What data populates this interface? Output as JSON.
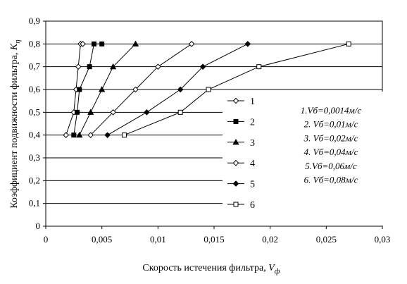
{
  "chart_data": {
    "type": "line",
    "xlabel": "Скорость истечения фильтра, ",
    "xlabel_symbol": "V",
    "xlabel_sub": "ф",
    "ylabel": "Коэффициент подвижности фильтра, ",
    "ylabel_symbol": "K",
    "ylabel_sub": "η",
    "xlim": [
      0,
      0.03
    ],
    "ylim": [
      0,
      0.9
    ],
    "xticks": [
      "0",
      "0,005",
      "0,01",
      "0,015",
      "0,02",
      "0,025",
      "0,03"
    ],
    "yticks": [
      "0",
      "0,1",
      "0,2",
      "0,3",
      "0,4",
      "0,5",
      "0,6",
      "0,7",
      "0,8",
      "0,9"
    ],
    "grid": "horizontal",
    "legend_position": "right",
    "series": [
      {
        "name": "1",
        "marker": "diamond-open",
        "x": [
          0.0018,
          0.0025,
          0.0027,
          0.0029,
          0.0031,
          0.0033
        ],
        "y": [
          0.4,
          0.5,
          0.6,
          0.7,
          0.8,
          0.8
        ]
      },
      {
        "name": "2",
        "marker": "square-filled",
        "x": [
          0.0025,
          0.0028,
          0.003,
          0.0039,
          0.0043,
          0.005
        ],
        "y": [
          0.4,
          0.5,
          0.6,
          0.7,
          0.8,
          0.8
        ]
      },
      {
        "name": "3",
        "marker": "triangle-filled",
        "x": [
          0.003,
          0.004,
          0.005,
          0.006,
          0.008
        ],
        "y": [
          0.4,
          0.5,
          0.6,
          0.7,
          0.8
        ]
      },
      {
        "name": "4",
        "marker": "diamond-open",
        "x": [
          0.004,
          0.006,
          0.008,
          0.01,
          0.013
        ],
        "y": [
          0.4,
          0.5,
          0.6,
          0.7,
          0.8
        ]
      },
      {
        "name": "5",
        "marker": "diamond-filled",
        "x": [
          0.0055,
          0.009,
          0.012,
          0.014,
          0.018
        ],
        "y": [
          0.4,
          0.5,
          0.6,
          0.7,
          0.8
        ]
      },
      {
        "name": "6",
        "marker": "square-open",
        "x": [
          0.007,
          0.012,
          0.0145,
          0.019,
          0.027
        ],
        "y": [
          0.4,
          0.5,
          0.6,
          0.7,
          0.8
        ]
      }
    ],
    "annotations": [
      "1.Vб=0,0014м/с",
      "2. Vб=0,01м/с",
      "3. Vб=0,02м/с",
      "4. Vб=0,04м/с",
      "5.Vб=0,06м/с",
      "6. Vб=0,08м/с"
    ]
  }
}
